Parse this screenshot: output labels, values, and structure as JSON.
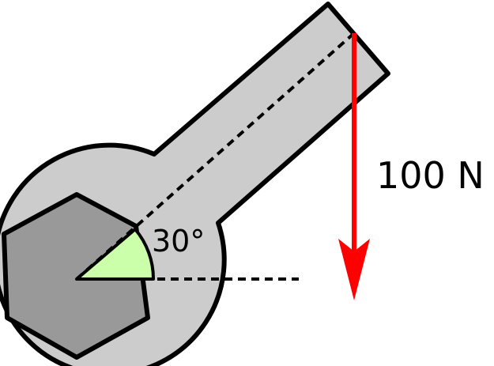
{
  "diagram": {
    "angle_label": "30°",
    "force_label": "100 N",
    "colors": {
      "wrench_fill": "#cccccc",
      "nut_fill": "#999999",
      "angle_wedge_fill": "#ccffaa",
      "force_arrow": "#ff0000",
      "outline": "#000000"
    }
  }
}
